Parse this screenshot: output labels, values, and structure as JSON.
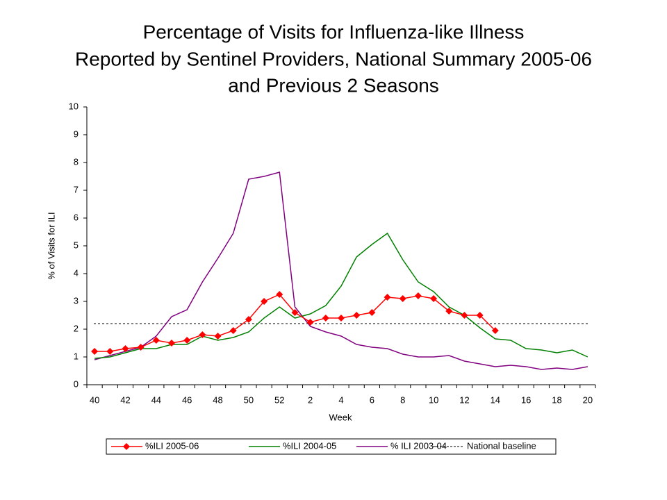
{
  "chart_data": {
    "type": "line",
    "title": [
      "Percentage of Visits for Influenza-like Illness",
      "Reported by Sentinel Providers, National Summary 2005-06",
      "and Previous 2 Seasons"
    ],
    "xlabel": "Week",
    "ylabel": "% of Visits for ILI",
    "categories": [
      40,
      null,
      42,
      null,
      44,
      null,
      46,
      null,
      48,
      null,
      50,
      null,
      52,
      null,
      2,
      null,
      4,
      null,
      6,
      null,
      8,
      null,
      10,
      null,
      12,
      null,
      14,
      null,
      16,
      null,
      18,
      null,
      20
    ],
    "series": [
      {
        "name": "%ILI 2005-06",
        "color": "#ff0000",
        "marker": "diamond",
        "values": [
          1.2,
          1.2,
          1.3,
          1.35,
          1.6,
          1.5,
          1.6,
          1.8,
          1.75,
          1.95,
          2.35,
          3.0,
          3.25,
          2.6,
          2.25,
          2.4,
          2.4,
          2.5,
          2.6,
          3.15,
          3.1,
          3.2,
          3.1,
          2.65,
          2.5,
          2.5,
          1.95,
          null,
          null,
          null,
          null,
          null,
          null
        ]
      },
      {
        "name": "%ILI 2004-05",
        "color": "#008000",
        "values": [
          0.95,
          1.0,
          1.15,
          1.3,
          1.3,
          1.45,
          1.45,
          1.75,
          1.6,
          1.7,
          1.9,
          2.4,
          2.8,
          2.4,
          2.55,
          2.85,
          3.55,
          4.6,
          5.05,
          5.45,
          4.5,
          3.7,
          3.35,
          2.8,
          2.5,
          2.05,
          1.65,
          1.6,
          1.3,
          1.25,
          1.15,
          1.25,
          1.0
        ]
      },
      {
        "name": "% ILI 2003-04",
        "color": "#800080",
        "values": [
          0.9,
          1.05,
          1.2,
          1.35,
          1.75,
          2.45,
          2.7,
          3.7,
          4.55,
          5.45,
          7.4,
          7.5,
          7.65,
          2.8,
          2.1,
          1.9,
          1.75,
          1.45,
          1.35,
          1.3,
          1.1,
          1.0,
          1.0,
          1.05,
          0.85,
          0.75,
          0.65,
          0.7,
          0.65,
          0.55,
          0.6,
          0.55,
          0.65
        ]
      }
    ],
    "baseline": {
      "name": "National baseline",
      "value": 2.2,
      "color": "#000000"
    },
    "ylim": [
      0,
      10
    ],
    "yticks": [
      0,
      1,
      2,
      3,
      4,
      5,
      6,
      7,
      8,
      9,
      10
    ],
    "grid": false
  }
}
